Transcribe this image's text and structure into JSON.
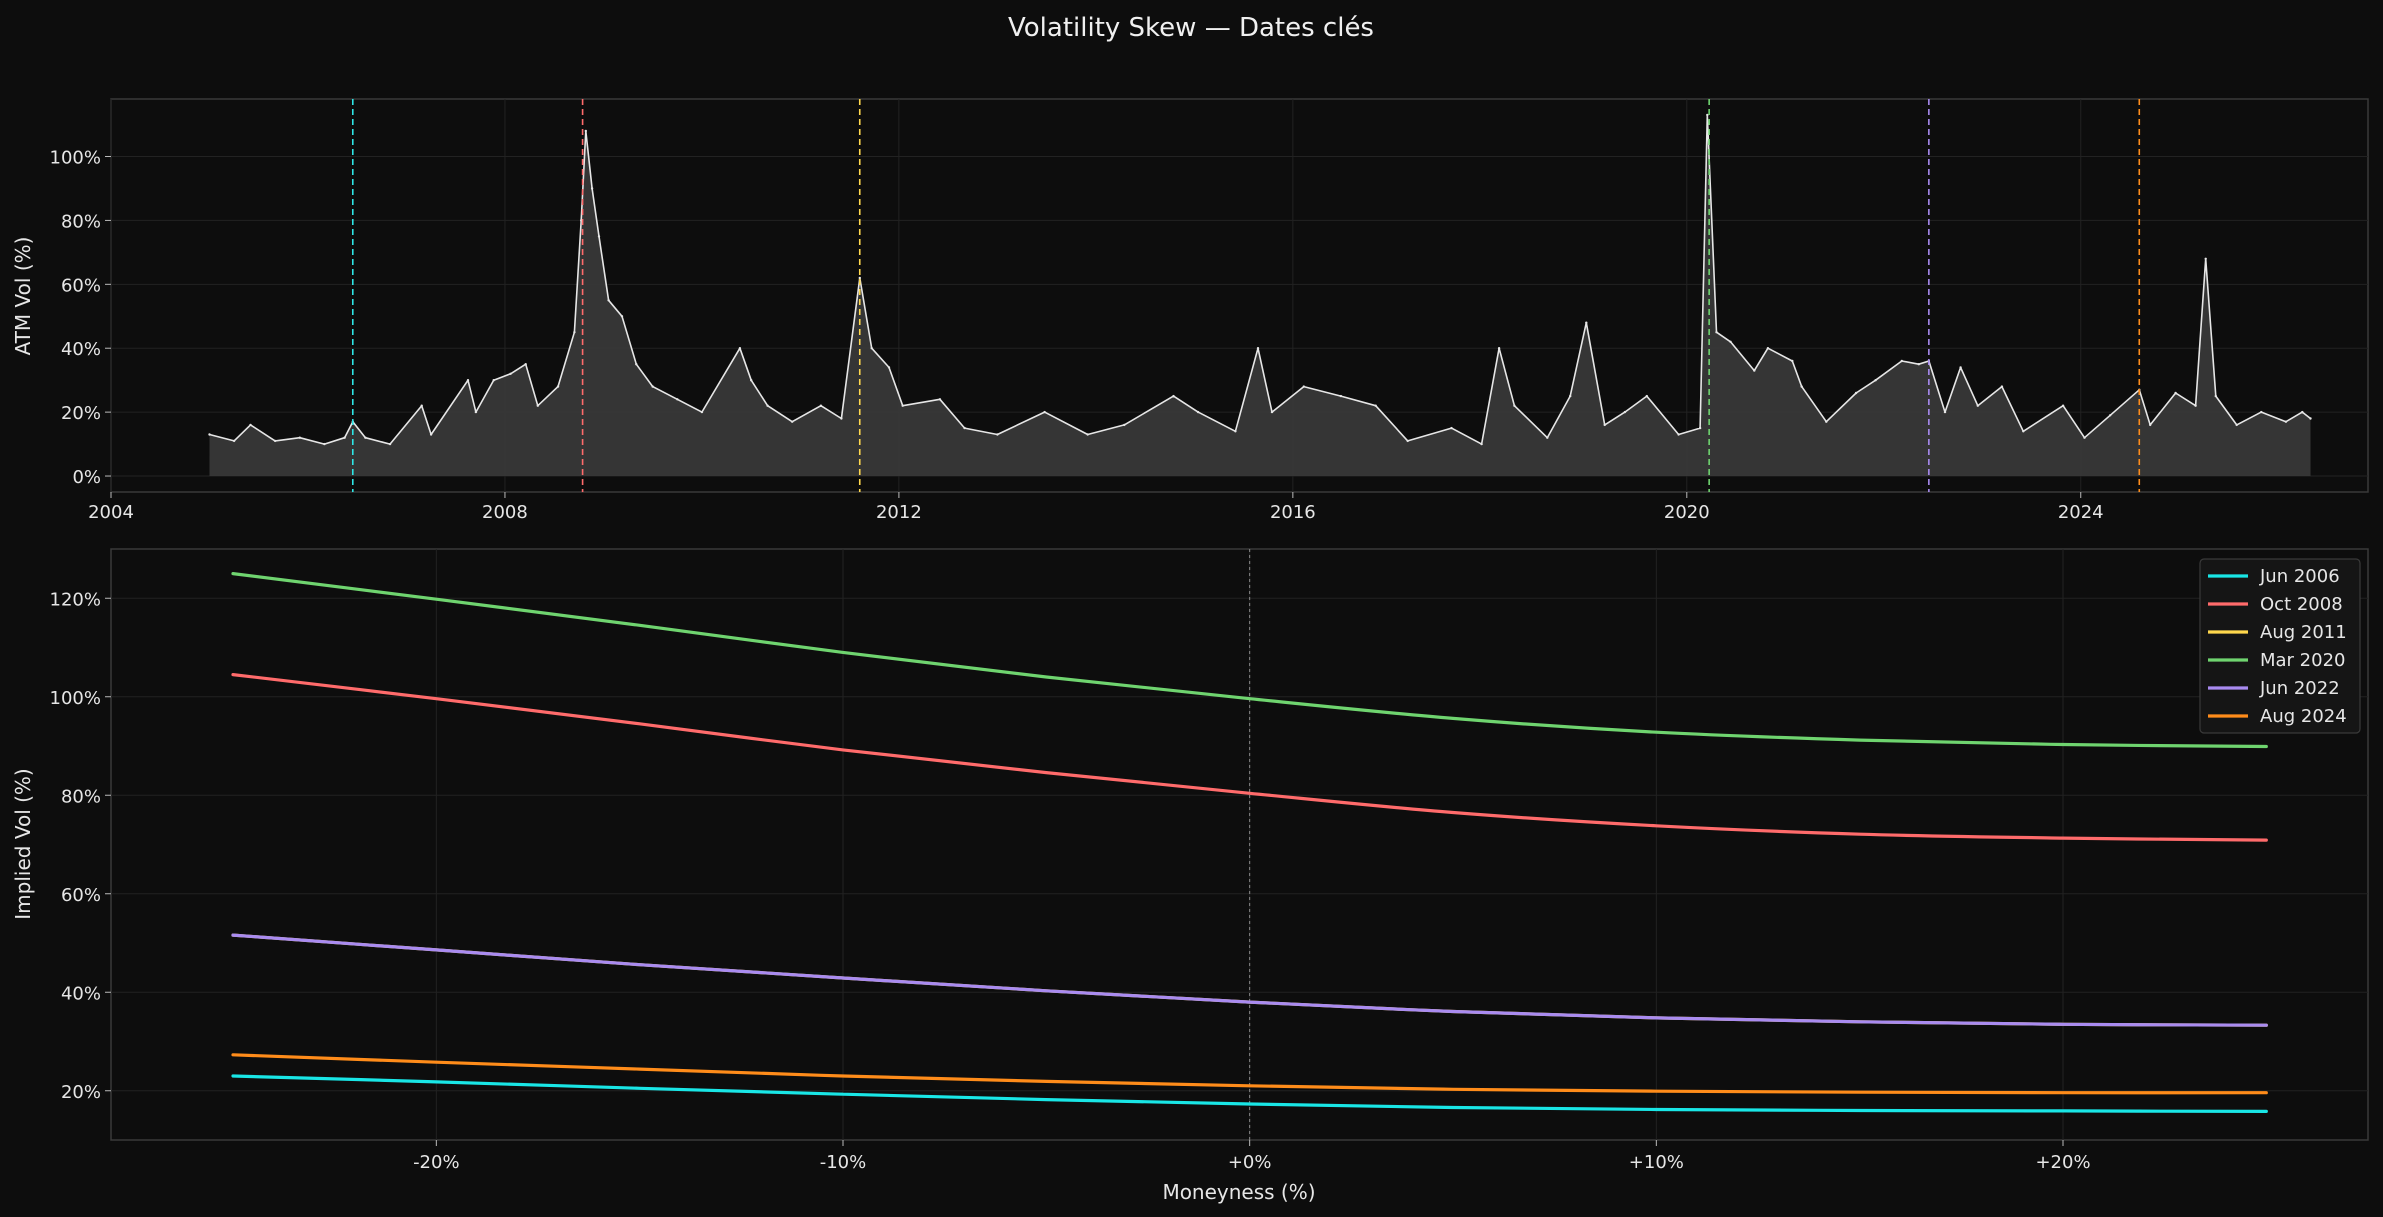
{
  "figure": {
    "title": "Volatility Skew — Dates clés",
    "background": "#0d0d0d"
  },
  "chart_data": [
    {
      "type": "area",
      "ylabel": "ATM Vol (%)",
      "xlabel": "",
      "xlim": [
        "2004-01-01",
        "2026-12-01"
      ],
      "ylim": [
        -5,
        118
      ],
      "x_ticks": [
        "2004",
        "2008",
        "2012",
        "2016",
        "2020",
        "2024"
      ],
      "y_ticks": [
        "0%",
        "20%",
        "40%",
        "60%",
        "80%",
        "100%"
      ],
      "y_tick_values": [
        0,
        20,
        40,
        60,
        80,
        100
      ],
      "grid": true,
      "series": [
        {
          "color": "#e6e6e6",
          "fill": "#3a3a3a",
          "points": [
            [
              "2005-01-01",
              13
            ],
            [
              "2005-04-01",
              11
            ],
            [
              "2005-06-01",
              16
            ],
            [
              "2005-09-01",
              11
            ],
            [
              "2005-12-01",
              12
            ],
            [
              "2006-03-01",
              10
            ],
            [
              "2006-05-15",
              12
            ],
            [
              "2006-06-15",
              17
            ],
            [
              "2006-08-01",
              12
            ],
            [
              "2006-11-01",
              10
            ],
            [
              "2007-02-27",
              22
            ],
            [
              "2007-04-01",
              13
            ],
            [
              "2007-08-16",
              30
            ],
            [
              "2007-09-15",
              20
            ],
            [
              "2007-11-20",
              30
            ],
            [
              "2008-01-22",
              32
            ],
            [
              "2008-03-17",
              35
            ],
            [
              "2008-05-01",
              22
            ],
            [
              "2008-07-15",
              28
            ],
            [
              "2008-09-15",
              45
            ],
            [
              "2008-10-10",
              80
            ],
            [
              "2008-10-27",
              108
            ],
            [
              "2008-11-20",
              90
            ],
            [
              "2008-12-15",
              75
            ],
            [
              "2009-01-20",
              55
            ],
            [
              "2009-03-09",
              50
            ],
            [
              "2009-05-01",
              35
            ],
            [
              "2009-07-01",
              28
            ],
            [
              "2009-10-01",
              24
            ],
            [
              "2010-01-01",
              20
            ],
            [
              "2010-05-20",
              40
            ],
            [
              "2010-07-01",
              30
            ],
            [
              "2010-09-01",
              22
            ],
            [
              "2010-12-01",
              17
            ],
            [
              "2011-03-16",
              22
            ],
            [
              "2011-06-01",
              18
            ],
            [
              "2011-08-08",
              62
            ],
            [
              "2011-09-22",
              40
            ],
            [
              "2011-11-25",
              34
            ],
            [
              "2012-01-15",
              22
            ],
            [
              "2012-06-01",
              24
            ],
            [
              "2012-09-01",
              15
            ],
            [
              "2013-01-01",
              13
            ],
            [
              "2013-06-24",
              20
            ],
            [
              "2013-12-01",
              13
            ],
            [
              "2014-04-15",
              16
            ],
            [
              "2014-10-15",
              25
            ],
            [
              "2015-01-15",
              20
            ],
            [
              "2015-06-01",
              14
            ],
            [
              "2015-08-24",
              40
            ],
            [
              "2015-10-15",
              20
            ],
            [
              "2016-02-11",
              28
            ],
            [
              "2016-06-27",
              25
            ],
            [
              "2016-11-04",
              22
            ],
            [
              "2017-03-01",
              11
            ],
            [
              "2017-08-11",
              15
            ],
            [
              "2017-12-01",
              10
            ],
            [
              "2018-02-05",
              40
            ],
            [
              "2018-04-01",
              22
            ],
            [
              "2018-08-01",
              12
            ],
            [
              "2018-10-25",
              25
            ],
            [
              "2018-12-24",
              48
            ],
            [
              "2019-03-01",
              16
            ],
            [
              "2019-05-15",
              20
            ],
            [
              "2019-08-05",
              25
            ],
            [
              "2019-12-01",
              13
            ],
            [
              "2020-02-20",
              15
            ],
            [
              "2020-03-16",
              113
            ],
            [
              "2020-04-20",
              45
            ],
            [
              "2020-06-11",
              42
            ],
            [
              "2020-09-08",
              33
            ],
            [
              "2020-10-28",
              40
            ],
            [
              "2021-01-27",
              36
            ],
            [
              "2021-03-01",
              28
            ],
            [
              "2021-06-01",
              17
            ],
            [
              "2021-09-20",
              26
            ],
            [
              "2021-12-01",
              30
            ],
            [
              "2022-03-07",
              36
            ],
            [
              "2022-05-09",
              35
            ],
            [
              "2022-06-16",
              36
            ],
            [
              "2022-08-15",
              20
            ],
            [
              "2022-10-12",
              34
            ],
            [
              "2022-12-15",
              22
            ],
            [
              "2023-03-13",
              28
            ],
            [
              "2023-06-01",
              14
            ],
            [
              "2023-10-27",
              22
            ],
            [
              "2024-01-15",
              12
            ],
            [
              "2024-04-19",
              19
            ],
            [
              "2024-08-05",
              27
            ],
            [
              "2024-09-15",
              16
            ],
            [
              "2024-12-18",
              26
            ],
            [
              "2025-03-01",
              22
            ],
            [
              "2025-04-08",
              68
            ],
            [
              "2025-05-15",
              25
            ],
            [
              "2025-08-01",
              16
            ],
            [
              "2025-11-01",
              20
            ],
            [
              "2026-02-01",
              17
            ],
            [
              "2026-04-01",
              20
            ],
            [
              "2026-05-01",
              18
            ]
          ]
        }
      ],
      "event_lines": [
        {
          "date": "2006-06-15",
          "color": "#2ee6e6"
        },
        {
          "date": "2008-10-15",
          "color": "#ff6b6b"
        },
        {
          "date": "2011-08-08",
          "color": "#ffd84d"
        },
        {
          "date": "2020-03-23",
          "color": "#6fd46f"
        },
        {
          "date": "2022-06-16",
          "color": "#a98bf0"
        },
        {
          "date": "2024-08-05",
          "color": "#ff8c1a"
        }
      ]
    },
    {
      "type": "line",
      "xlabel": "Moneyness (%)",
      "ylabel": "Implied Vol (%)",
      "xlim": [
        -28,
        27.5
      ],
      "ylim": [
        10,
        130
      ],
      "x_tick_values": [
        -20,
        -10,
        0,
        10,
        20
      ],
      "x_ticks": [
        "-20%",
        "-10%",
        "+0%",
        "+10%",
        "+20%"
      ],
      "y_tick_values": [
        20,
        40,
        60,
        80,
        100,
        120
      ],
      "y_ticks": [
        "20%",
        "40%",
        "60%",
        "80%",
        "100%",
        "120%"
      ],
      "grid": true,
      "legend_position": "top-right",
      "x": [
        -25,
        -20,
        -15,
        -10,
        -5,
        0,
        5,
        10,
        15,
        20,
        25
      ],
      "series": [
        {
          "name": "Jun 2006",
          "color": "#19e6e6",
          "values": [
            23.0,
            21.8,
            20.5,
            19.3,
            18.2,
            17.3,
            16.6,
            16.2,
            16.0,
            15.9,
            15.8
          ]
        },
        {
          "name": "Oct 2008",
          "color": "#ff6b6b",
          "values": [
            104.5,
            99.6,
            94.5,
            89.2,
            84.6,
            80.4,
            76.5,
            73.8,
            72.1,
            71.3,
            70.9
          ]
        },
        {
          "name": "Aug 2011",
          "color": "#ffd84d",
          "values": [
            51.6,
            48.6,
            45.6,
            42.9,
            40.3,
            38.0,
            36.1,
            34.8,
            34.0,
            33.5,
            33.3
          ]
        },
        {
          "name": "Mar 2020",
          "color": "#6fd46f",
          "values": [
            125.0,
            119.8,
            114.5,
            109.0,
            104.0,
            99.6,
            95.6,
            92.8,
            91.2,
            90.3,
            89.9
          ]
        },
        {
          "name": "Jun 2022",
          "color": "#a98bf0",
          "values": [
            51.6,
            48.6,
            45.6,
            42.9,
            40.3,
            38.0,
            36.1,
            34.8,
            34.0,
            33.5,
            33.3
          ]
        },
        {
          "name": "Aug 2024",
          "color": "#ff8c1a",
          "values": [
            27.3,
            25.8,
            24.4,
            23.0,
            21.9,
            21.0,
            20.3,
            19.9,
            19.7,
            19.6,
            19.6
          ]
        }
      ]
    }
  ]
}
